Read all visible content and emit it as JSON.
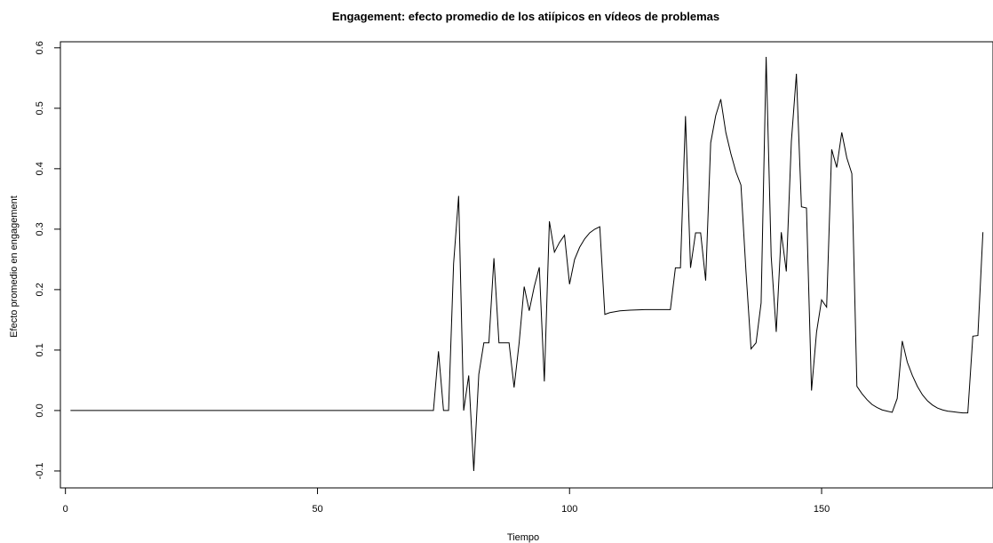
{
  "chart_data": {
    "type": "line",
    "title": "Engagement: efecto promedio de los atiípicos en vídeos de problemas",
    "xlabel": "Tiempo",
    "ylabel": "Efecto promedio en engagement",
    "xlim": [
      -1,
      184
    ],
    "ylim": [
      -0.128,
      0.61
    ],
    "x_ticks": [
      0,
      50,
      100,
      150
    ],
    "x_tick_labels": [
      "0",
      "50",
      "100",
      "150"
    ],
    "y_ticks": [
      -0.1,
      0.0,
      0.1,
      0.2,
      0.3,
      0.4,
      0.5,
      0.6
    ],
    "y_tick_labels": [
      "-0.1",
      "0.0",
      "0.1",
      "0.2",
      "0.3",
      "0.4",
      "0.5",
      "0.6"
    ],
    "line_color": "#000000",
    "grid": false,
    "series": [
      {
        "x": [
          1,
          73,
          74,
          75,
          76,
          77,
          78,
          79,
          80,
          81,
          82,
          83,
          84,
          85,
          86,
          87,
          88,
          89,
          90,
          91,
          92,
          93,
          94,
          95,
          96,
          97,
          98,
          99,
          100,
          101,
          102,
          103,
          104,
          105,
          106,
          107,
          108,
          110,
          112,
          115,
          120,
          121,
          122,
          123,
          124,
          125,
          126,
          127,
          128,
          129,
          130,
          131,
          132,
          133,
          134,
          135,
          136,
          137,
          138,
          139,
          140,
          141,
          142,
          143,
          144,
          145,
          146,
          147,
          148,
          149,
          150,
          151,
          152,
          153,
          154,
          155,
          156,
          157,
          158,
          159,
          160,
          161,
          162,
          163,
          164,
          165,
          166,
          167,
          168,
          169,
          170,
          171,
          172,
          173,
          174,
          175,
          176,
          177,
          178,
          179,
          180,
          181,
          182
        ],
        "values": [
          0.0,
          0.0,
          0.098,
          0.0,
          0.0,
          0.243,
          0.355,
          0.0,
          0.058,
          -0.1,
          0.06,
          0.112,
          0.112,
          0.252,
          0.112,
          0.112,
          0.112,
          0.038,
          0.112,
          0.205,
          0.165,
          0.205,
          0.237,
          0.048,
          0.313,
          0.262,
          0.278,
          0.29,
          0.209,
          0.25,
          0.27,
          0.284,
          0.294,
          0.3,
          0.304,
          0.159,
          0.162,
          0.165,
          0.166,
          0.167,
          0.167,
          0.236,
          0.236,
          0.487,
          0.236,
          0.294,
          0.294,
          0.215,
          0.443,
          0.488,
          0.515,
          0.46,
          0.425,
          0.395,
          0.373,
          0.23,
          0.102,
          0.112,
          0.178,
          0.585,
          0.255,
          0.13,
          0.295,
          0.23,
          0.445,
          0.557,
          0.337,
          0.335,
          0.033,
          0.13,
          0.183,
          0.171,
          0.432,
          0.402,
          0.46,
          0.418,
          0.392,
          0.04,
          0.028,
          0.018,
          0.01,
          0.005,
          0.001,
          -0.001,
          -0.003,
          0.02,
          0.115,
          0.08,
          0.058,
          0.04,
          0.026,
          0.016,
          0.009,
          0.004,
          0.001,
          -0.001,
          -0.002,
          -0.003,
          -0.004,
          -0.004,
          0.123,
          0.124,
          0.295
        ]
      }
    ]
  }
}
